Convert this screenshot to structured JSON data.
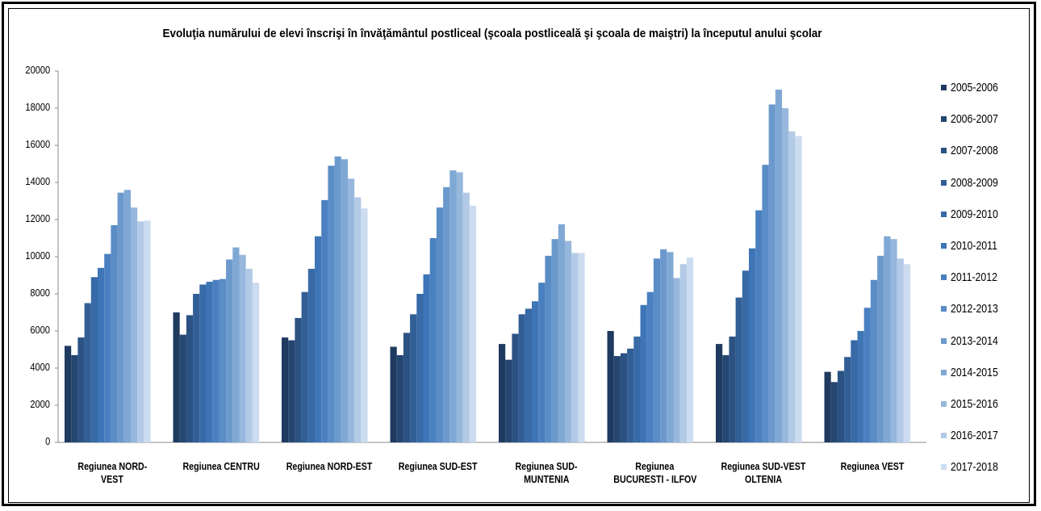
{
  "chart_data": {
    "type": "bar",
    "title": "Evoluţia numărului de elevi înscrişi în învăţământul postliceal (şcoala postliceală şi şcoala de maiştri) la începutul anului şcolar",
    "xlabel": "",
    "ylabel": "",
    "ylim": [
      0,
      20000
    ],
    "yticks": [
      "0",
      "2000",
      "4000",
      "6000",
      "8000",
      "10000",
      "12000",
      "14000",
      "16000",
      "18000",
      "20000"
    ],
    "grid": false,
    "legend_position": "right",
    "categories": [
      [
        "Regiunea NORD-",
        "VEST"
      ],
      [
        "Regiunea CENTRU"
      ],
      [
        "Regiunea NORD-EST"
      ],
      [
        "Regiunea SUD-EST"
      ],
      [
        "Regiunea SUD-",
        "MUNTENIA"
      ],
      [
        "Regiunea",
        "BUCURESTI - ILFOV"
      ],
      [
        "Regiunea SUD-VEST",
        "OLTENIA"
      ],
      [
        "Regiunea VEST"
      ]
    ],
    "series": [
      {
        "name": "2005-2006",
        "color": "#1f3a5f",
        "values": [
          5200,
          7000,
          5650,
          5150,
          5300,
          6000,
          5300,
          3800
        ]
      },
      {
        "name": "2006-2007",
        "color": "#254670",
        "values": [
          4700,
          5800,
          5500,
          4700,
          4450,
          4650,
          4700,
          3250
        ]
      },
      {
        "name": "2007-2008",
        "color": "#2b5282",
        "values": [
          5650,
          6850,
          6700,
          5900,
          5850,
          4800,
          5700,
          3850
        ]
      },
      {
        "name": "2008-2009",
        "color": "#315e95",
        "values": [
          7500,
          8000,
          8100,
          6900,
          6900,
          5050,
          7800,
          4600
        ]
      },
      {
        "name": "2009-2010",
        "color": "#376aa6",
        "values": [
          8900,
          8500,
          9350,
          8000,
          7200,
          5700,
          9250,
          5500
        ]
      },
      {
        "name": "2010-2011",
        "color": "#3e75b7",
        "values": [
          9400,
          8650,
          11100,
          9050,
          7600,
          7400,
          10450,
          6000
        ]
      },
      {
        "name": "2011-2012",
        "color": "#4a80c0",
        "values": [
          10150,
          8750,
          13050,
          11000,
          8600,
          8100,
          12500,
          7250
        ]
      },
      {
        "name": "2012-2013",
        "color": "#5a8cc6",
        "values": [
          11700,
          8800,
          14900,
          12650,
          10050,
          9900,
          14950,
          8750
        ]
      },
      {
        "name": "2013-2014",
        "color": "#6c99cc",
        "values": [
          13450,
          9850,
          15400,
          13750,
          10950,
          10400,
          18200,
          10050
        ]
      },
      {
        "name": "2014-2015",
        "color": "#80a8d4",
        "values": [
          13600,
          10500,
          15250,
          14650,
          11750,
          10250,
          19000,
          11100
        ]
      },
      {
        "name": "2015-2016",
        "color": "#97b8dc",
        "values": [
          12650,
          10100,
          14200,
          14550,
          10850,
          8850,
          18000,
          10950
        ]
      },
      {
        "name": "2016-2017",
        "color": "#b2cae6",
        "values": [
          11900,
          9350,
          13200,
          13450,
          10200,
          9600,
          16750,
          9900
        ]
      },
      {
        "name": "2017-2018",
        "color": "#ccdcef",
        "values": [
          11950,
          8600,
          12600,
          12750,
          10200,
          9950,
          16500,
          9600
        ]
      }
    ]
  }
}
